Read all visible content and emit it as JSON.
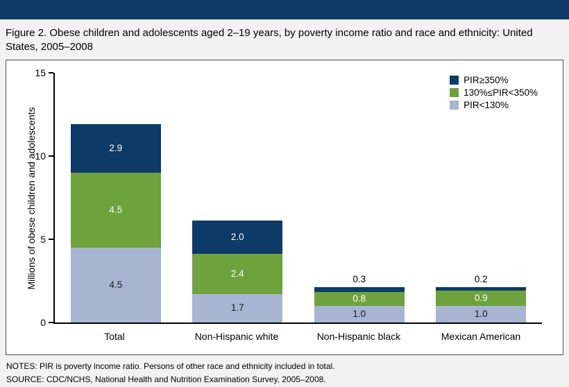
{
  "title": "Figure 2. Obese children and adolescents aged 2–19 years, by poverty income ratio and race and ethnicity: United States, 2005–2008",
  "notes": "NOTES: PIR is poverty income ratio. Persons of other race and ethnicity included in total.",
  "source": "SOURCE: CDC/NCHS, National Health and Nutrition Examination Survey, 2005–2008.",
  "colors": {
    "banner": "#0d3a66",
    "navy": "#0d3a66",
    "green": "#6da23c",
    "light_blue": "#a7b5d3",
    "page_bg": "#f2f2f2",
    "plot_bg": "#ffffff"
  },
  "chart_data": {
    "type": "bar",
    "stacked": true,
    "title": "Figure 2. Obese children and adolescents aged 2–19 years, by poverty income ratio and race and ethnicity: United States, 2005–2008",
    "categories": [
      "Total",
      "Non-Hispanic white",
      "Non-Hispanic black",
      "Mexican American"
    ],
    "series": [
      {
        "name": "PIR<130%",
        "color": "#a7b5d3",
        "label_color": "#1a1a1a",
        "values": [
          4.5,
          1.7,
          1.0,
          1.0
        ]
      },
      {
        "name": "130%≤PIR<350%",
        "color": "#6da23c",
        "label_color": "#ffffff",
        "values": [
          4.5,
          2.4,
          0.8,
          0.9
        ]
      },
      {
        "name": "PIR≥350%",
        "color": "#0d3a66",
        "label_color": "#ffffff",
        "values": [
          2.9,
          2.0,
          0.3,
          0.2
        ]
      }
    ],
    "legend_order": [
      "PIR≥350%",
      "130%≤PIR<350%",
      "PIR<130%"
    ],
    "legend_position": "top-right",
    "xlabel": "",
    "ylabel": "Millions of obese children and adolescents",
    "ylim": [
      0,
      15
    ],
    "yticks": [
      0,
      5,
      10,
      15
    ],
    "grid": false
  }
}
